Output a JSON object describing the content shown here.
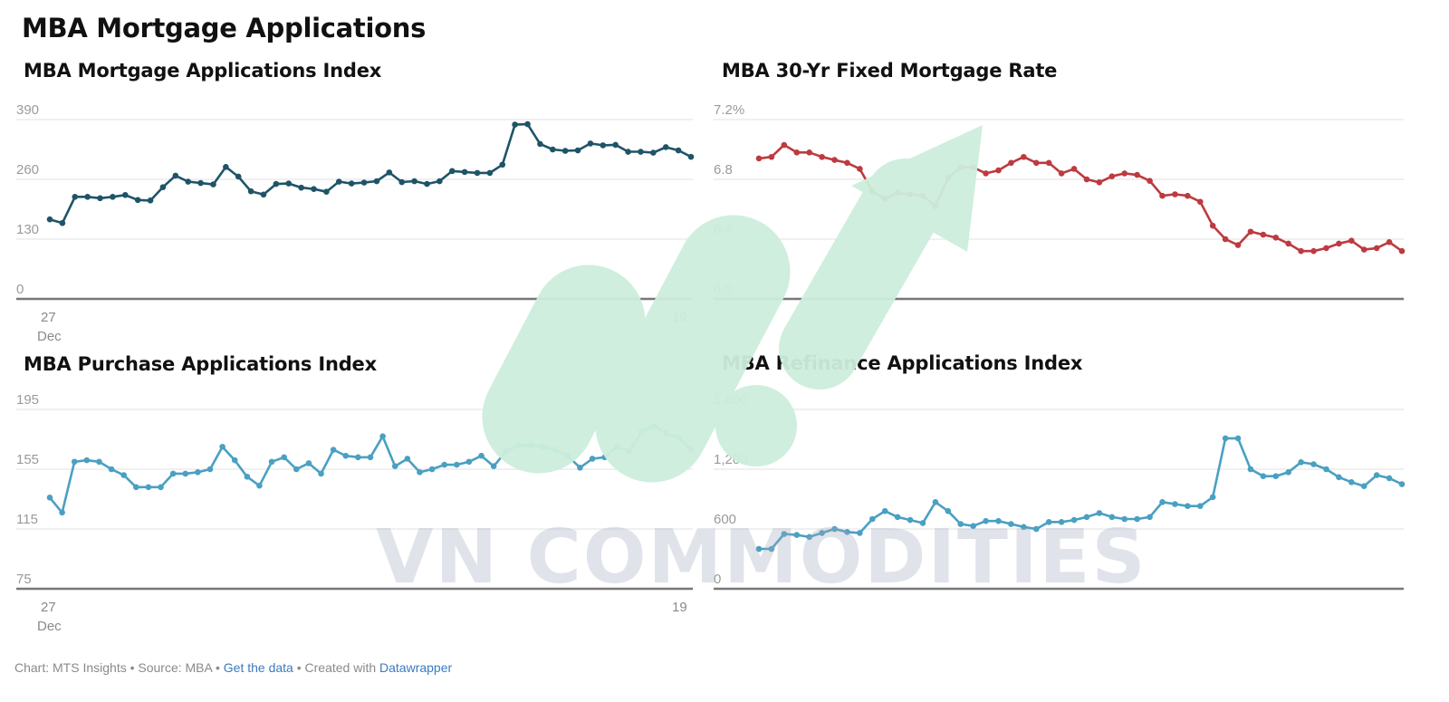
{
  "title": "MBA Mortgage Applications",
  "footer": {
    "prefix": "Chart: MTS Insights • Source: MBA • ",
    "link1": "Get the data",
    "middle": " • Created with ",
    "link2": "Datawrapper"
  },
  "watermark": {
    "text": "VN COMMODITIES"
  },
  "colors": {
    "dark_line": "#1f5468",
    "red_line": "#bd3a3f",
    "blue_line": "#4aa0c2",
    "watermark_green": "#cdeedd"
  },
  "chart_data": [
    {
      "type": "line",
      "title": "MBA Mortgage Applications Index",
      "x_tick_labels": [
        {
          "day": "27",
          "month": "Dec"
        },
        {
          "day": "19",
          "month": ""
        }
      ],
      "y_ticks": [
        {
          "value": 0,
          "label": "0"
        },
        {
          "value": 130,
          "label": "130"
        },
        {
          "value": 260,
          "label": "260"
        },
        {
          "value": 390,
          "label": "390"
        }
      ],
      "ylim": [
        0,
        390
      ],
      "grid": true,
      "color": "#1f5468",
      "values": [
        173,
        165,
        222,
        222,
        219,
        222,
        226,
        215,
        214,
        243,
        268,
        255,
        252,
        249,
        287,
        266,
        234,
        227,
        250,
        251,
        242,
        239,
        233,
        255,
        251,
        253,
        256,
        275,
        254,
        256,
        250,
        256,
        278,
        276,
        274,
        274,
        292,
        379,
        380,
        337,
        325,
        322,
        323,
        338,
        334,
        335,
        320,
        320,
        318,
        330,
        323,
        309
      ]
    },
    {
      "type": "line",
      "title": "MBA 30-Yr Fixed Mortgage Rate",
      "x_tick_labels": [],
      "y_ticks": [
        {
          "value": 6.0,
          "label": "6.0"
        },
        {
          "value": 6.4,
          "label": "6.4"
        },
        {
          "value": 6.8,
          "label": "6.8"
        },
        {
          "value": 7.2,
          "label": "7.2%"
        }
      ],
      "ylim": [
        6.0,
        7.2
      ],
      "grid": true,
      "color": "#bd3a3f",
      "values": [
        6.94,
        6.95,
        7.03,
        6.98,
        6.98,
        6.95,
        6.93,
        6.91,
        6.87,
        6.72,
        6.67,
        6.71,
        6.7,
        6.69,
        6.62,
        6.81,
        6.88,
        6.88,
        6.84,
        6.86,
        6.91,
        6.95,
        6.91,
        6.91,
        6.84,
        6.87,
        6.8,
        6.78,
        6.82,
        6.84,
        6.83,
        6.79,
        6.69,
        6.7,
        6.69,
        6.65,
        6.49,
        6.4,
        6.36,
        6.45,
        6.43,
        6.41,
        6.37,
        6.32,
        6.32,
        6.34,
        6.37,
        6.39,
        6.33,
        6.34,
        6.38,
        6.32
      ]
    },
    {
      "type": "line",
      "title": "MBA Purchase Applications Index",
      "x_tick_labels": [
        {
          "day": "27",
          "month": "Dec"
        },
        {
          "day": "19",
          "month": ""
        }
      ],
      "y_ticks": [
        {
          "value": 75,
          "label": "75"
        },
        {
          "value": 115,
          "label": "115"
        },
        {
          "value": 155,
          "label": "155"
        },
        {
          "value": 195,
          "label": "195"
        }
      ],
      "ylim": [
        75,
        195
      ],
      "grid": true,
      "color": "#4aa0c2",
      "values": [
        136,
        126,
        160,
        161,
        160,
        155,
        151,
        143,
        143,
        143,
        152,
        152,
        153,
        155,
        170,
        161,
        150,
        144,
        160,
        163,
        155,
        159,
        152,
        168,
        164,
        163,
        163,
        177,
        157,
        162,
        153,
        155,
        158,
        158,
        160,
        164,
        157,
        167,
        171,
        171,
        170,
        168,
        164,
        156,
        162,
        163,
        170,
        167,
        180,
        184,
        179,
        176,
        168
      ]
    },
    {
      "type": "line",
      "title": "MBA Refinance Applications Index",
      "x_tick_labels": [],
      "y_ticks": [
        {
          "value": 0,
          "label": "0"
        },
        {
          "value": 600,
          "label": "600"
        },
        {
          "value": 1200,
          "label": "1,200"
        },
        {
          "value": 1800,
          "label": "1,800"
        }
      ],
      "ylim": [
        0,
        1800
      ],
      "grid": true,
      "color": "#4aa0c2",
      "values": [
        400,
        400,
        550,
        540,
        520,
        560,
        600,
        570,
        560,
        700,
        780,
        720,
        690,
        660,
        870,
        780,
        650,
        630,
        680,
        680,
        650,
        620,
        600,
        670,
        670,
        690,
        720,
        760,
        720,
        700,
        700,
        720,
        870,
        850,
        830,
        830,
        920,
        1510,
        1510,
        1200,
        1130,
        1130,
        1170,
        1270,
        1250,
        1200,
        1120,
        1070,
        1030,
        1140,
        1110,
        1050
      ]
    }
  ]
}
